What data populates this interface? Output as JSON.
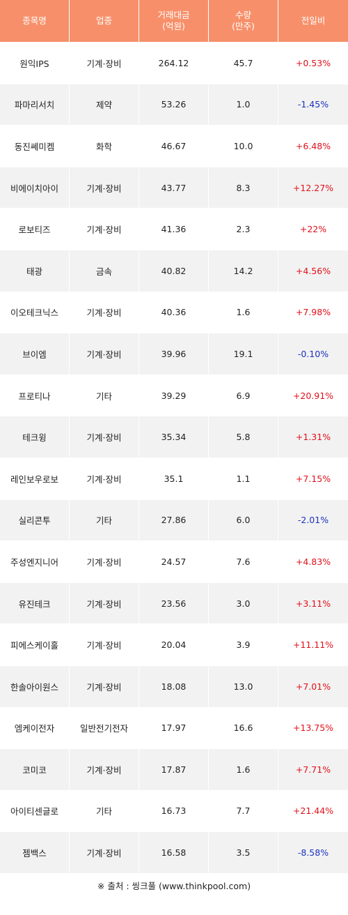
{
  "table": {
    "headers": [
      "종목명",
      "업종",
      "거래대금\n(억원)",
      "수량\n(만주)",
      "전일비"
    ],
    "rows": [
      {
        "name": "원익IPS",
        "sector": "기계·장비",
        "amount": "264.12",
        "volume": "45.7",
        "change": "+0.53%",
        "dir": "up"
      },
      {
        "name": "파마리서치",
        "sector": "제약",
        "amount": "53.26",
        "volume": "1.0",
        "change": "-1.45%",
        "dir": "down"
      },
      {
        "name": "동진쎄미켐",
        "sector": "화학",
        "amount": "46.67",
        "volume": "10.0",
        "change": "+6.48%",
        "dir": "up"
      },
      {
        "name": "비에이치아이",
        "sector": "기계·장비",
        "amount": "43.77",
        "volume": "8.3",
        "change": "+12.27%",
        "dir": "up"
      },
      {
        "name": "로보티즈",
        "sector": "기계·장비",
        "amount": "41.36",
        "volume": "2.3",
        "change": "+22%",
        "dir": "up"
      },
      {
        "name": "태광",
        "sector": "금속",
        "amount": "40.82",
        "volume": "14.2",
        "change": "+4.56%",
        "dir": "up"
      },
      {
        "name": "이오테크닉스",
        "sector": "기계·장비",
        "amount": "40.36",
        "volume": "1.6",
        "change": "+7.98%",
        "dir": "up"
      },
      {
        "name": "브이엠",
        "sector": "기계·장비",
        "amount": "39.96",
        "volume": "19.1",
        "change": "-0.10%",
        "dir": "down"
      },
      {
        "name": "프로티나",
        "sector": "기타",
        "amount": "39.29",
        "volume": "6.9",
        "change": "+20.91%",
        "dir": "up"
      },
      {
        "name": "테크윙",
        "sector": "기계·장비",
        "amount": "35.34",
        "volume": "5.8",
        "change": "+1.31%",
        "dir": "up"
      },
      {
        "name": "레인보우로보",
        "sector": "기계·장비",
        "amount": "35.1",
        "volume": "1.1",
        "change": "+7.15%",
        "dir": "up"
      },
      {
        "name": "실리콘투",
        "sector": "기타",
        "amount": "27.86",
        "volume": "6.0",
        "change": "-2.01%",
        "dir": "down"
      },
      {
        "name": "주성엔지니어",
        "sector": "기계·장비",
        "amount": "24.57",
        "volume": "7.6",
        "change": "+4.83%",
        "dir": "up"
      },
      {
        "name": "유진테크",
        "sector": "기계·장비",
        "amount": "23.56",
        "volume": "3.0",
        "change": "+3.11%",
        "dir": "up"
      },
      {
        "name": "피에스케이홀",
        "sector": "기계·장비",
        "amount": "20.04",
        "volume": "3.9",
        "change": "+11.11%",
        "dir": "up"
      },
      {
        "name": "한솔아이원스",
        "sector": "기계·장비",
        "amount": "18.08",
        "volume": "13.0",
        "change": "+7.01%",
        "dir": "up"
      },
      {
        "name": "엠케이전자",
        "sector": "일반전기전자",
        "amount": "17.97",
        "volume": "16.6",
        "change": "+13.75%",
        "dir": "up"
      },
      {
        "name": "코미코",
        "sector": "기계·장비",
        "amount": "17.87",
        "volume": "1.6",
        "change": "+7.71%",
        "dir": "up"
      },
      {
        "name": "아이티센글로",
        "sector": "기타",
        "amount": "16.73",
        "volume": "7.7",
        "change": "+21.44%",
        "dir": "up"
      },
      {
        "name": "젬백스",
        "sector": "기계·장비",
        "amount": "16.58",
        "volume": "3.5",
        "change": "-8.58%",
        "dir": "down"
      }
    ]
  },
  "source_note": "※ 출처 : 씽크풀 (www.thinkpool.com)",
  "colors": {
    "header_bg": "#f7906a",
    "up": "#e0101a",
    "down": "#1a30c0",
    "row_alt": "#f2f2f2"
  }
}
